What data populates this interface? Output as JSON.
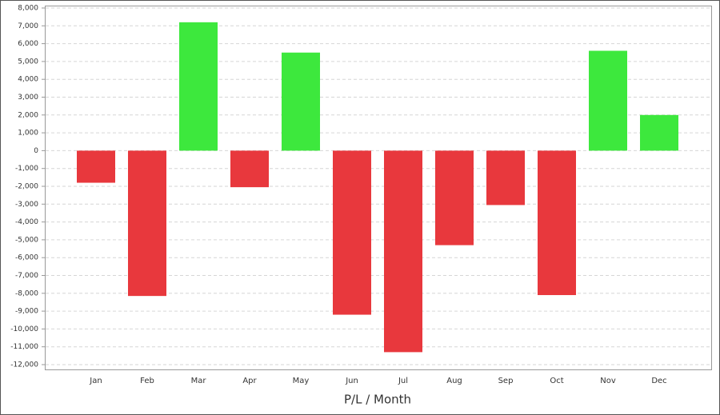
{
  "chart_data": {
    "type": "bar",
    "x_label": "P/L / Month",
    "categories": [
      "Jan",
      "Feb",
      "Mar",
      "Apr",
      "May",
      "Jun",
      "Jul",
      "Aug",
      "Sep",
      "Oct",
      "Nov",
      "Dec"
    ],
    "values": [
      -1800,
      -8150,
      7200,
      -2050,
      5500,
      -9200,
      -11300,
      -5300,
      -3050,
      -8100,
      5600,
      2000
    ],
    "positive_color": "#3de83d",
    "negative_color": "#e8383d",
    "ylim": [
      -12000,
      8000
    ],
    "yticks": [
      {
        "value": -12000,
        "label": "-12,000"
      },
      {
        "value": -11000,
        "label": "-11,000"
      },
      {
        "value": -10000,
        "label": "-10,000"
      },
      {
        "value": -9000,
        "label": "-9,000"
      },
      {
        "value": -8000,
        "label": "-8,000"
      },
      {
        "value": -7000,
        "label": "-7,000"
      },
      {
        "value": -6000,
        "label": "-6,000"
      },
      {
        "value": -5000,
        "label": "-5,000"
      },
      {
        "value": -4000,
        "label": "-4,000"
      },
      {
        "value": -3000,
        "label": "-3,000"
      },
      {
        "value": -2000,
        "label": "-2,000"
      },
      {
        "value": -1000,
        "label": "-1,000"
      },
      0,
      {
        "value": 1000,
        "label": "1,000"
      },
      {
        "value": 2000,
        "label": "2,000"
      },
      {
        "value": 3000,
        "label": "3,000"
      },
      {
        "value": 4000,
        "label": "4,000"
      },
      {
        "value": 5000,
        "label": "5,000"
      },
      {
        "value": 6000,
        "label": "6,000"
      },
      {
        "value": 7000,
        "label": "7,000"
      },
      {
        "value": 8000,
        "label": "8,000"
      }
    ],
    "grid": true
  }
}
